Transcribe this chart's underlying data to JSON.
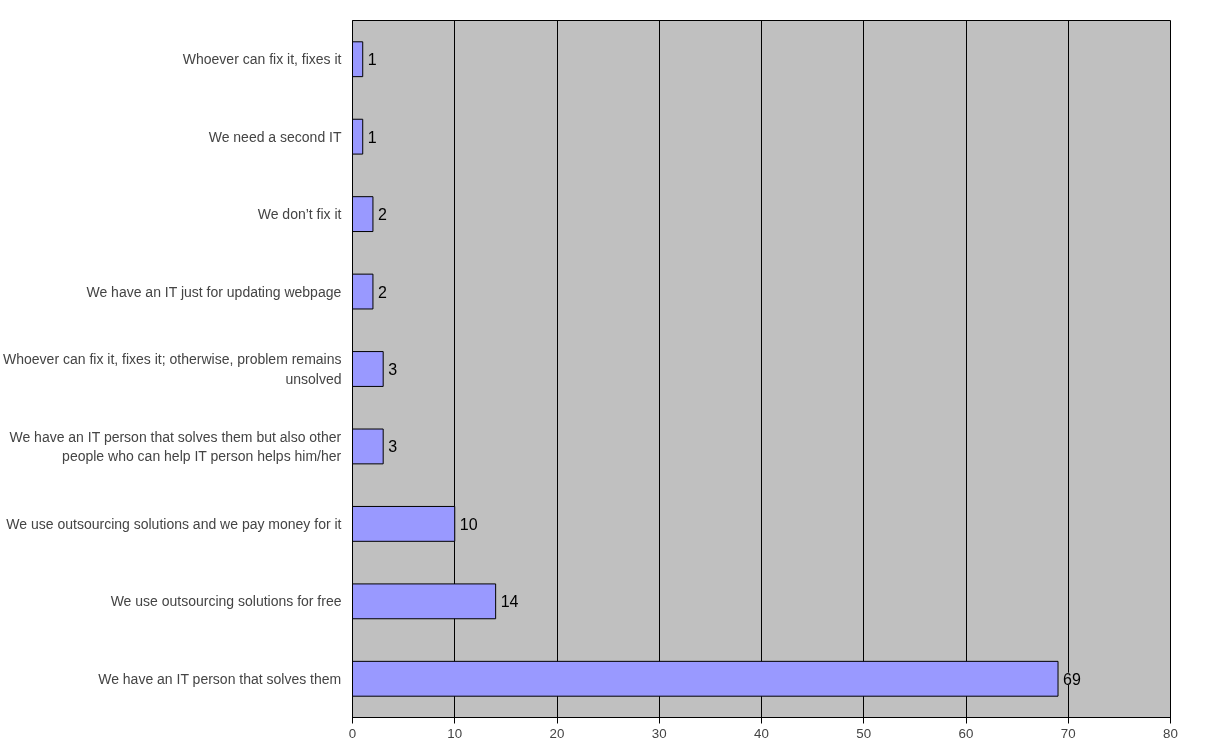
{
  "chart_data": {
    "type": "bar",
    "orientation": "horizontal",
    "categories": [
      "Whoever can fix it, fixes it",
      "We need a second IT",
      "We don’t fix it",
      "We have an IT just for updating webpage",
      "Whoever can fix it, fixes it; otherwise, problem remains unsolved",
      "We have an IT person that solves them but also other people who can help IT person helps him/her",
      "We use outsourcing solutions and we pay money for it",
      "We use outsourcing solutions for free",
      "We have an IT person that solves them"
    ],
    "values": [
      1,
      1,
      2,
      2,
      3,
      3,
      10,
      14,
      69
    ],
    "color": "#9999ff",
    "xlim": [
      0,
      80
    ],
    "xticks": [
      0,
      10,
      20,
      30,
      40,
      50,
      60,
      70,
      80
    ],
    "grid": "x",
    "data_labels": true
  }
}
